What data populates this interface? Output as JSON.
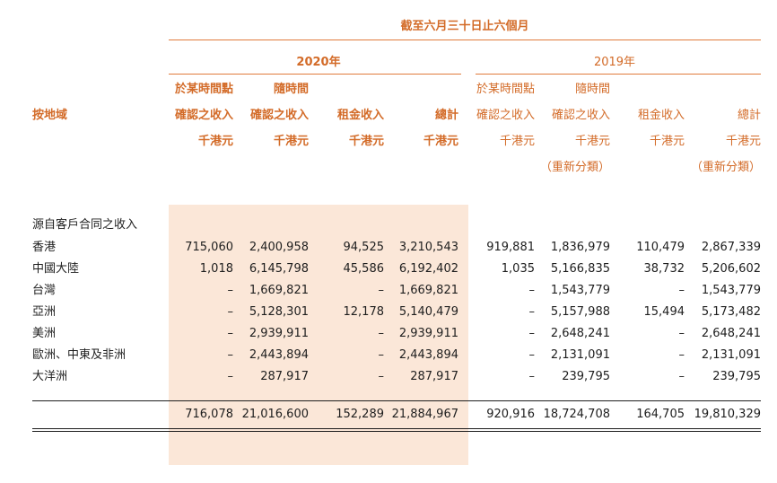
{
  "header": {
    "period_label": "截至六月三十日止六個月",
    "year_2020": "2020年",
    "year_2019": "2019年",
    "row_label_header": "按地域"
  },
  "columns": [
    {
      "line1": "於某時間點",
      "line2": "確認之收入",
      "unit": "千港元",
      "note": ""
    },
    {
      "line1": "隨時間",
      "line2": "確認之收入",
      "unit": "千港元",
      "note": ""
    },
    {
      "line1": "",
      "line2": "租金收入",
      "unit": "千港元",
      "note": ""
    },
    {
      "line1": "",
      "line2": "總計",
      "unit": "千港元",
      "note": ""
    },
    {
      "line1": "於某時間點",
      "line2": "確認之收入",
      "unit": "千港元",
      "note": ""
    },
    {
      "line1": "隨時間",
      "line2": "確認之收入",
      "unit": "千港元",
      "note": "（重新分類）"
    },
    {
      "line1": "",
      "line2": "租金收入",
      "unit": "千港元",
      "note": ""
    },
    {
      "line1": "",
      "line2": "總計",
      "unit": "千港元",
      "note": "（重新分類）"
    }
  ],
  "section_title": "源自客戶合同之收入",
  "rows": [
    {
      "label": "香港",
      "values": [
        "715,060",
        "2,400,958",
        "94,525",
        "3,210,543",
        "919,881",
        "1,836,979",
        "110,479",
        "2,867,339"
      ]
    },
    {
      "label": "中國大陸",
      "values": [
        "1,018",
        "6,145,798",
        "45,586",
        "6,192,402",
        "1,035",
        "5,166,835",
        "38,732",
        "5,206,602"
      ]
    },
    {
      "label": "台灣",
      "values": [
        "–",
        "1,669,821",
        "–",
        "1,669,821",
        "–",
        "1,543,779",
        "–",
        "1,543,779"
      ]
    },
    {
      "label": "亞洲",
      "values": [
        "–",
        "5,128,301",
        "12,178",
        "5,140,479",
        "–",
        "5,157,988",
        "15,494",
        "5,173,482"
      ]
    },
    {
      "label": "美洲",
      "values": [
        "–",
        "2,939,911",
        "–",
        "2,939,911",
        "–",
        "2,648,241",
        "–",
        "2,648,241"
      ]
    },
    {
      "label": "歐洲、中東及非洲",
      "values": [
        "–",
        "2,443,894",
        "–",
        "2,443,894",
        "–",
        "2,131,091",
        "–",
        "2,131,091"
      ]
    },
    {
      "label": "大洋洲",
      "values": [
        "–",
        "287,917",
        "–",
        "287,917",
        "–",
        "239,795",
        "–",
        "239,795"
      ]
    }
  ],
  "totals": [
    "716,078",
    "21,016,600",
    "152,289",
    "21,884,967",
    "920,916",
    "18,724,708",
    "164,705",
    "19,810,329"
  ],
  "colors": {
    "accent": "#d36b28",
    "shade": "#fbe7d8",
    "rule": "#e07b3c"
  }
}
